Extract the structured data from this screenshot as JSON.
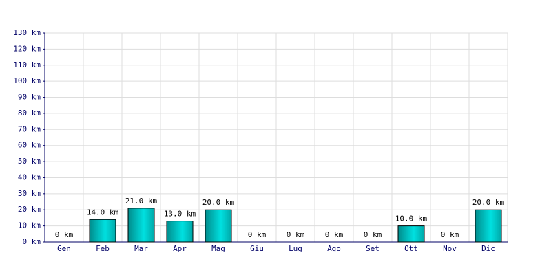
{
  "chart_data": {
    "type": "bar",
    "categories": [
      "Gen",
      "Feb",
      "Mar",
      "Apr",
      "Mag",
      "Giu",
      "Lug",
      "Ago",
      "Set",
      "Ott",
      "Nov",
      "Dic"
    ],
    "values": [
      0,
      14,
      21,
      13,
      20,
      0,
      0,
      0,
      0,
      10,
      0,
      20
    ],
    "value_labels": [
      "0 km",
      "14.0 km",
      "21.0 km",
      "13.0 km",
      "20.0 km",
      "0 km",
      "0 km",
      "0 km",
      "0 km",
      "10.0 km",
      "0 km",
      "20.0 km"
    ],
    "color": "#00e0e0",
    "ylim": [
      0,
      130
    ],
    "yticks": [
      {
        "value": 0,
        "label": "0 km"
      },
      {
        "value": 10,
        "label": "10 km"
      },
      {
        "value": 20,
        "label": "20 km"
      },
      {
        "value": 30,
        "label": "30 km"
      },
      {
        "value": 40,
        "label": "40 km"
      },
      {
        "value": 50,
        "label": "50 km"
      },
      {
        "value": 60,
        "label": "60 km"
      },
      {
        "value": 70,
        "label": "70 km"
      },
      {
        "value": 80,
        "label": "80 km"
      },
      {
        "value": 90,
        "label": "90 km"
      },
      {
        "value": 100,
        "label": "100 km"
      },
      {
        "value": 110,
        "label": "110 km"
      },
      {
        "value": 120,
        "label": "120 km"
      },
      {
        "value": 130,
        "label": "130 km"
      }
    ],
    "grid": true
  }
}
